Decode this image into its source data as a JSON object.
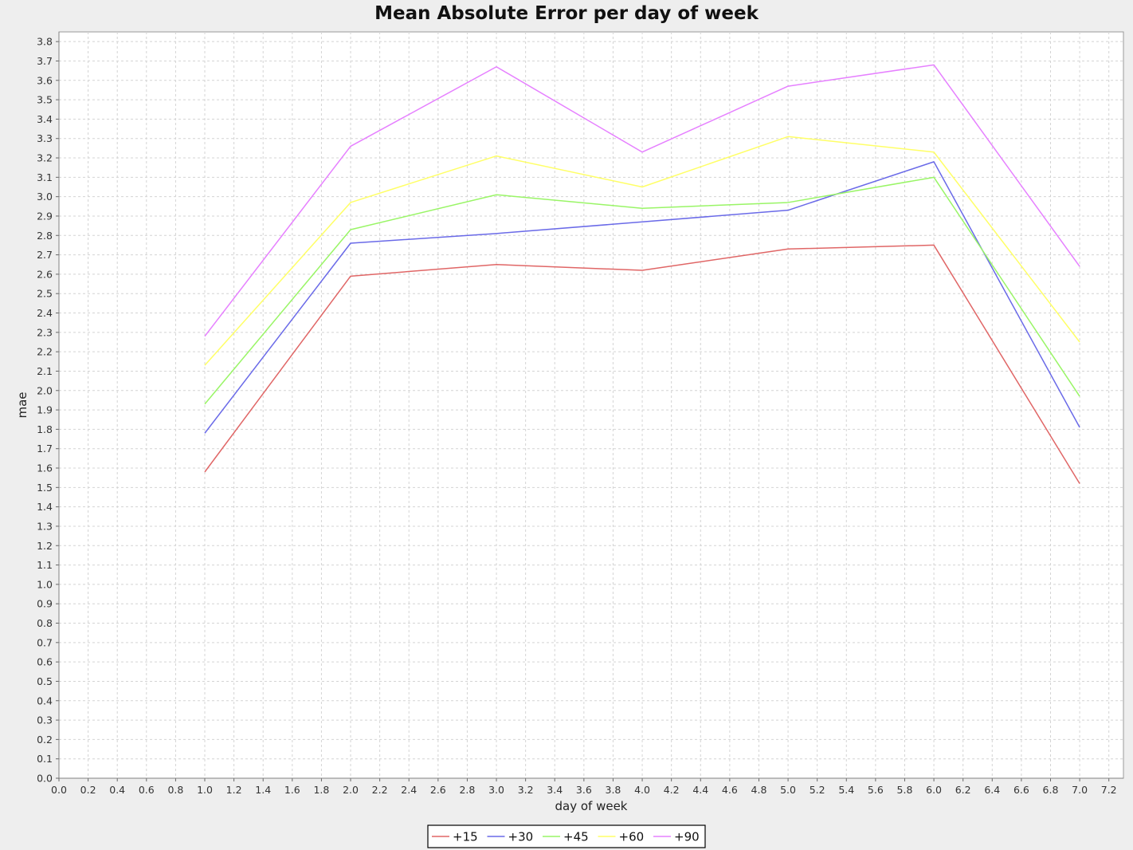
{
  "chart_data": {
    "type": "line",
    "title": "Mean Absolute Error per day of week",
    "xlabel": "day of week",
    "ylabel": "mae",
    "xlim": [
      0.0,
      7.3
    ],
    "ylim": [
      0.0,
      3.85
    ],
    "x_ticks": [
      "0.0",
      "0.2",
      "0.4",
      "0.6",
      "0.8",
      "1.0",
      "1.2",
      "1.4",
      "1.6",
      "1.8",
      "2.0",
      "2.2",
      "2.4",
      "2.6",
      "2.8",
      "3.0",
      "3.2",
      "3.4",
      "3.6",
      "3.8",
      "4.0",
      "4.2",
      "4.4",
      "4.6",
      "4.8",
      "5.0",
      "5.2",
      "5.4",
      "5.6",
      "5.8",
      "6.0",
      "6.2",
      "6.4",
      "6.6",
      "6.8",
      "7.0",
      "7.2"
    ],
    "y_ticks": [
      "0.0",
      "0.1",
      "0.2",
      "0.3",
      "0.4",
      "0.5",
      "0.6",
      "0.7",
      "0.8",
      "0.9",
      "1.0",
      "1.1",
      "1.2",
      "1.3",
      "1.4",
      "1.5",
      "1.6",
      "1.7",
      "1.8",
      "1.9",
      "2.0",
      "2.1",
      "2.2",
      "2.3",
      "2.4",
      "2.5",
      "2.6",
      "2.7",
      "2.8",
      "2.9",
      "3.0",
      "3.1",
      "3.2",
      "3.3",
      "3.4",
      "3.5",
      "3.6",
      "3.7",
      "3.8"
    ],
    "grid": true,
    "legend_position": "bottom-center",
    "x": [
      1.0,
      2.0,
      3.0,
      4.0,
      5.0,
      6.0,
      7.0
    ],
    "series": [
      {
        "name": "+15",
        "color": "#e06666",
        "values": [
          1.58,
          2.59,
          2.65,
          2.62,
          2.73,
          2.75,
          1.52
        ]
      },
      {
        "name": "+30",
        "color": "#6a6ae8",
        "values": [
          1.78,
          2.76,
          2.81,
          2.87,
          2.93,
          3.18,
          1.81
        ]
      },
      {
        "name": "+45",
        "color": "#99f566",
        "values": [
          1.93,
          2.83,
          3.01,
          2.94,
          2.97,
          3.1,
          1.97
        ]
      },
      {
        "name": "+60",
        "color": "#ffff66",
        "values": [
          2.13,
          2.97,
          3.21,
          3.05,
          3.31,
          3.23,
          2.25
        ]
      },
      {
        "name": "+90",
        "color": "#e680ff",
        "values": [
          2.28,
          3.26,
          3.67,
          3.23,
          3.57,
          3.68,
          2.64
        ]
      }
    ]
  }
}
